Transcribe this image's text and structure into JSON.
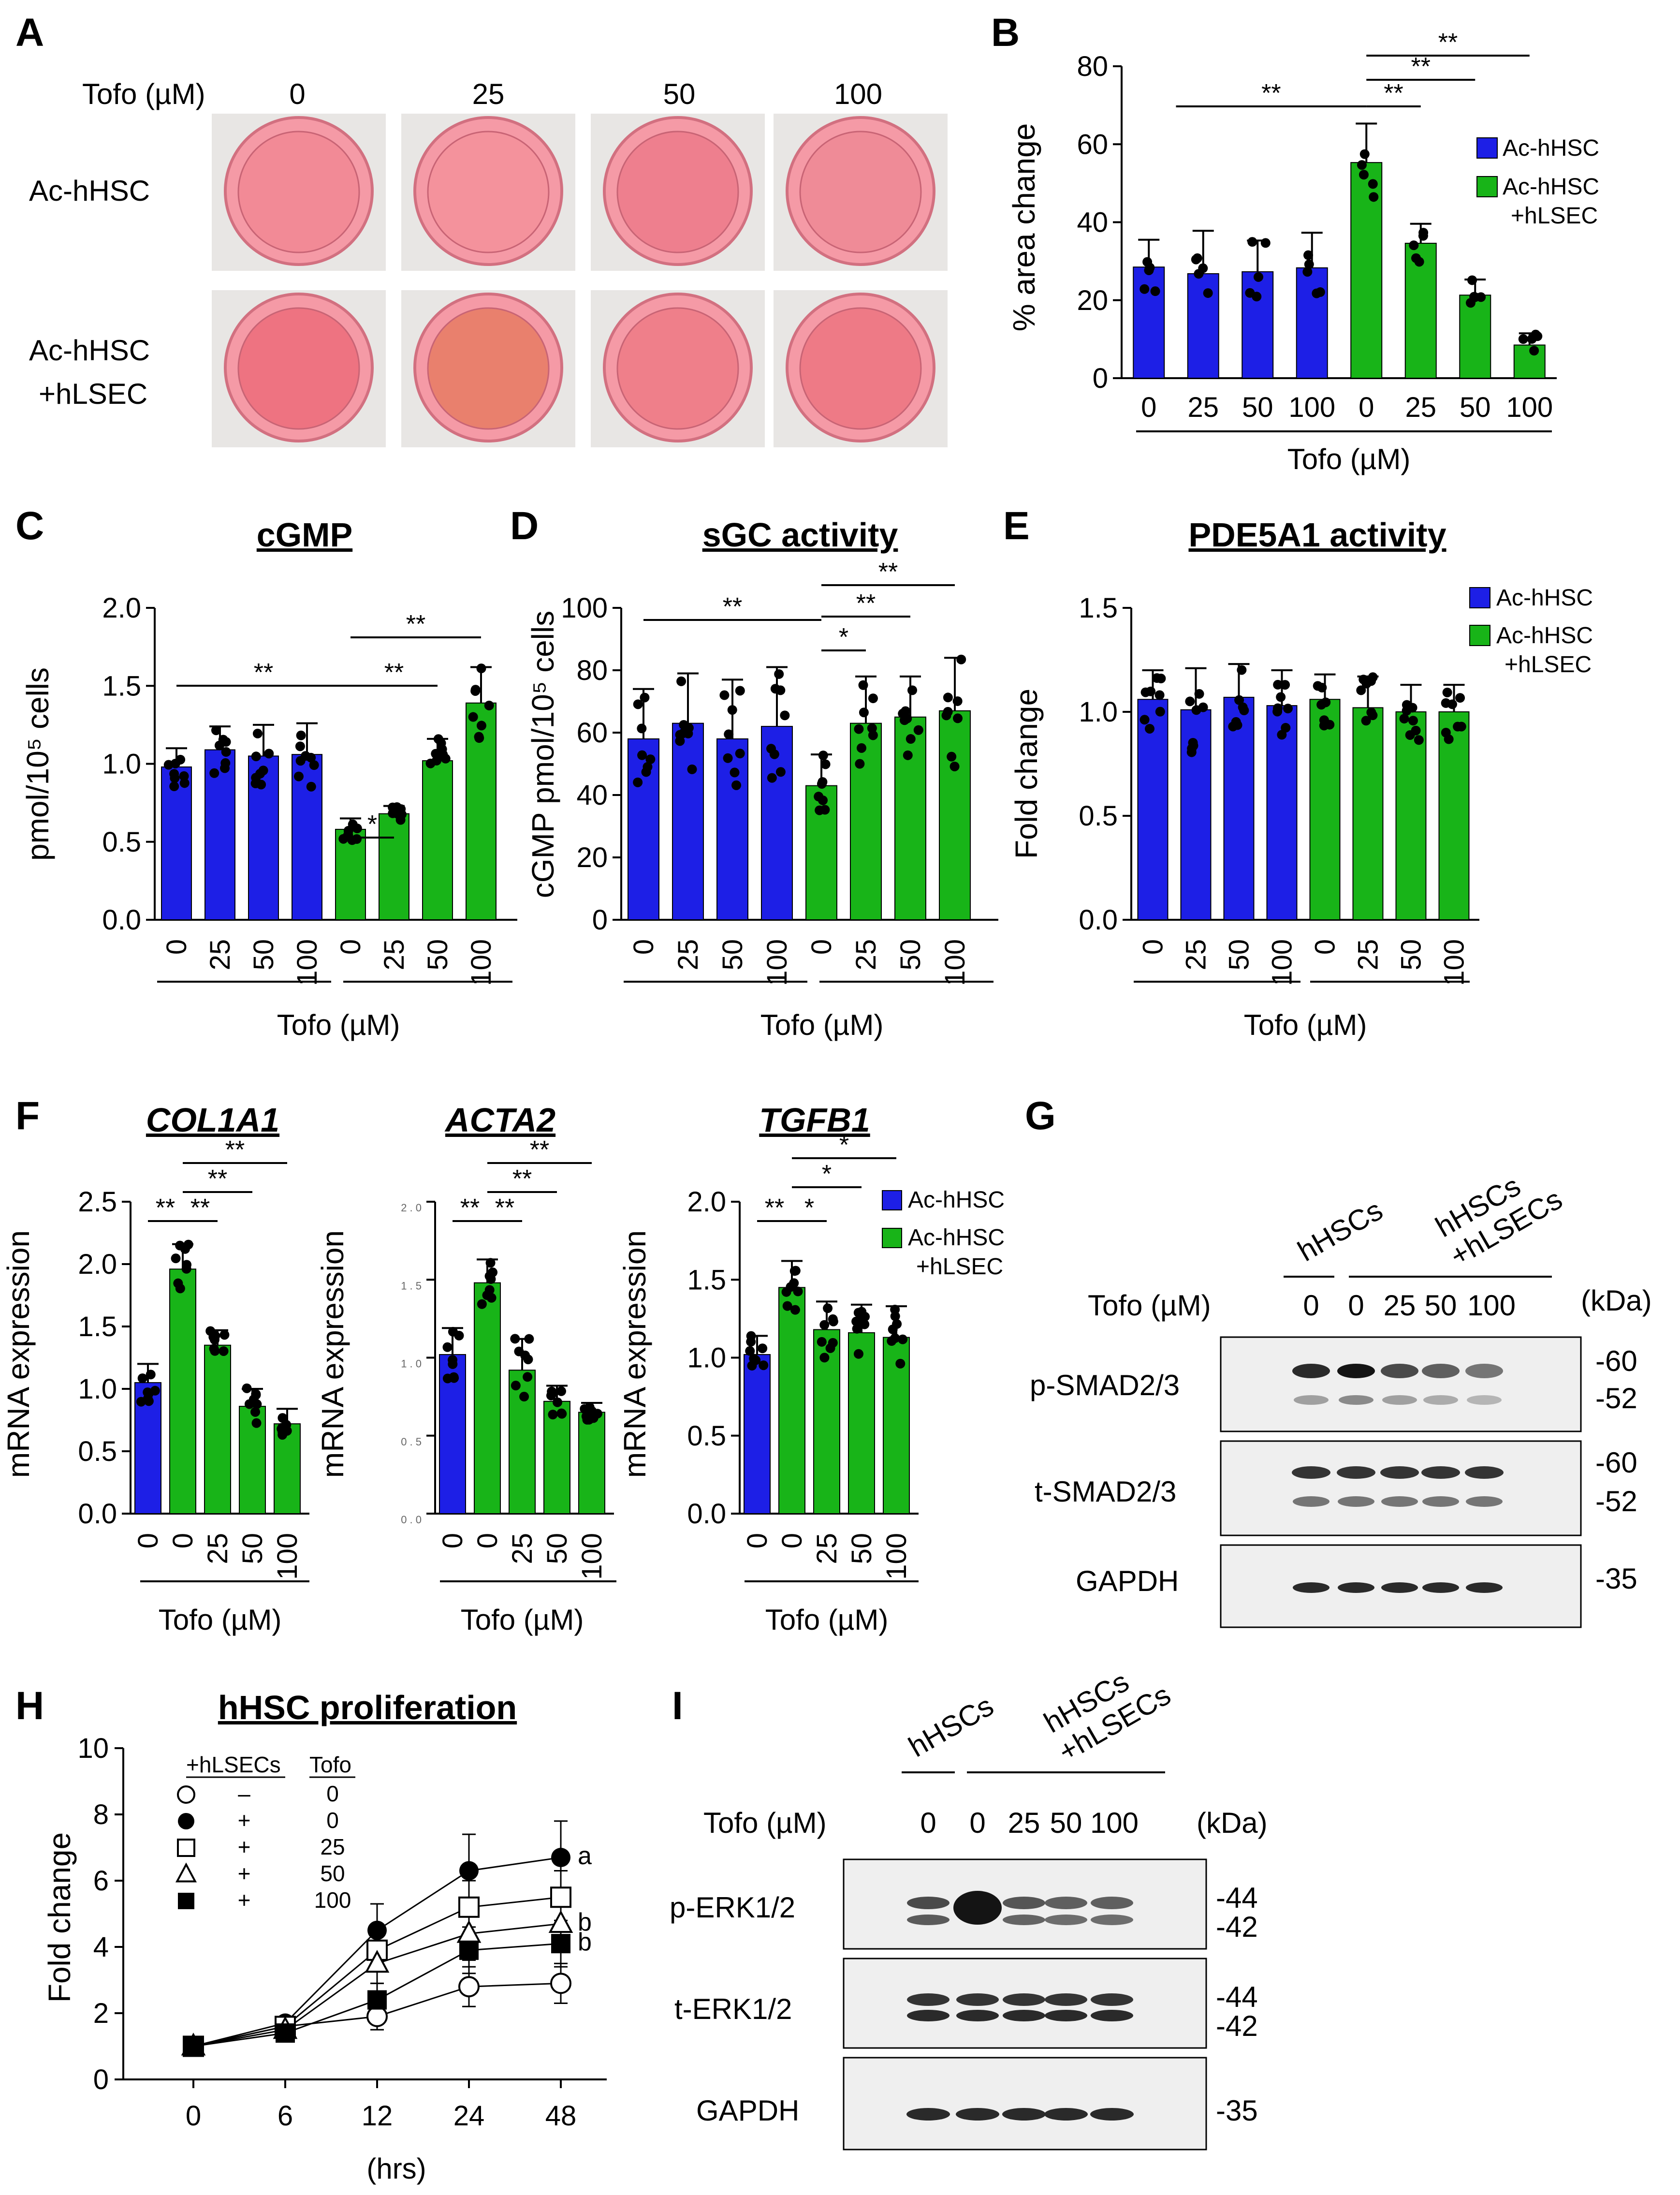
{
  "colors": {
    "blue": "#1d1fe6",
    "green": "#18b418",
    "black": "#000000",
    "well_pink": "#f08d9a"
  },
  "panel_letters": [
    "A",
    "B",
    "C",
    "D",
    "E",
    "F",
    "G",
    "H",
    "I"
  ],
  "panel_a": {
    "tofo_label": "Tofo (µM)",
    "concentrations": [
      "0",
      "25",
      "50",
      "100"
    ],
    "row_labels": [
      "Ac-hHSC",
      "Ac-hHSC\n+hLSEC"
    ],
    "row1": "Ac-hHSC",
    "row2a": "Ac-hHSC",
    "row2b": "+hLSEC"
  },
  "legend": {
    "blue_label": "Ac-hHSC",
    "green_label_1": "Ac-hHSC",
    "green_label_2": "+hLSEC"
  },
  "chart_data": [
    {
      "id": "B",
      "type": "bar",
      "title": "",
      "ylabel": "% area change",
      "xlabel": "Tofo (µM)",
      "ylim": [
        0,
        80
      ],
      "yticks": [
        "0",
        "20",
        "40",
        "60",
        "80"
      ],
      "categories": [
        "0",
        "25",
        "50",
        "100",
        "0",
        "25",
        "50",
        "100"
      ],
      "groups": [
        "Ac-hHSC",
        "Ac-hHSC+hLSEC"
      ],
      "values": [
        28.5,
        26.8,
        27.3,
        28.3,
        55.3,
        34.6,
        21.3,
        8.5
      ],
      "errors": [
        7,
        11,
        8,
        9,
        10,
        5,
        4,
        3
      ],
      "significance": [
        "**",
        "**",
        "**",
        "**"
      ]
    },
    {
      "id": "C",
      "type": "bar",
      "title": "cGMP",
      "ylabel": "pmol/10⁵ cells",
      "xlabel": "Tofo (µM)",
      "ylim": [
        0,
        2.0
      ],
      "yticks": [
        "0.0",
        "0.5",
        "1.0",
        "1.5",
        "2.0"
      ],
      "categories": [
        "0",
        "25",
        "50",
        "100",
        "0",
        "25",
        "50",
        "100"
      ],
      "values": [
        0.98,
        1.09,
        1.05,
        1.06,
        0.58,
        0.68,
        1.02,
        1.39
      ],
      "errors": [
        0.12,
        0.15,
        0.2,
        0.2,
        0.07,
        0.05,
        0.14,
        0.23
      ],
      "significance": [
        "**",
        "*",
        "**",
        "**"
      ]
    },
    {
      "id": "D",
      "type": "bar",
      "title": "sGC activity",
      "ylabel": "cGMP pmol/10⁵ cells",
      "xlabel": "Tofo (µM)",
      "ylim": [
        0,
        100
      ],
      "yticks": [
        "0",
        "20",
        "40",
        "60",
        "80",
        "100"
      ],
      "categories": [
        "0",
        "25",
        "50",
        "100",
        "0",
        "25",
        "50",
        "100"
      ],
      "values": [
        58,
        63,
        58,
        62,
        43,
        63,
        65,
        67
      ],
      "errors": [
        16,
        16,
        19,
        19,
        10,
        15,
        13,
        17
      ],
      "significance": [
        "**",
        "*",
        "**",
        "**"
      ]
    },
    {
      "id": "E",
      "type": "bar",
      "title": "PDE5A1 activity",
      "ylabel": "Fold change",
      "xlabel": "Tofo (µM)",
      "ylim": [
        0,
        1.5
      ],
      "yticks": [
        "0.0",
        "0.5",
        "1.0",
        "1.5"
      ],
      "categories": [
        "0",
        "25",
        "50",
        "100",
        "0",
        "25",
        "50",
        "100"
      ],
      "values": [
        1.06,
        1.01,
        1.07,
        1.03,
        1.06,
        1.02,
        1.0,
        1.0
      ],
      "errors": [
        0.14,
        0.2,
        0.16,
        0.17,
        0.12,
        0.15,
        0.13,
        0.13
      ]
    },
    {
      "id": "F1",
      "type": "bar",
      "title": "COL1A1",
      "ylabel": "mRNA expression",
      "xlabel": "Tofo (µM)",
      "ylim": [
        0,
        2.5
      ],
      "yticks": [
        "0.0",
        "0.5",
        "1.0",
        "1.5",
        "2.0",
        "2.5"
      ],
      "categories": [
        "0",
        "0",
        "25",
        "50",
        "100"
      ],
      "values": [
        1.05,
        1.96,
        1.35,
        0.86,
        0.72
      ],
      "errors": [
        0.15,
        0.2,
        0.12,
        0.14,
        0.12
      ],
      "significance": [
        "**",
        "**",
        "**",
        "**"
      ]
    },
    {
      "id": "F2",
      "type": "bar",
      "title": "ACTA2",
      "ylabel": "mRNA expression",
      "xlabel": "Tofo (µM)",
      "ylim": [
        0,
        2.0
      ],
      "yticks": [
        "0 . 0",
        "0 . 5",
        "1 . 0",
        "1 . 5",
        "2 . 0"
      ],
      "categories": [
        "0",
        "0",
        "25",
        "50",
        "100"
      ],
      "values": [
        1.02,
        1.48,
        0.92,
        0.72,
        0.65
      ],
      "errors": [
        0.17,
        0.15,
        0.2,
        0.1,
        0.06
      ],
      "significance": [
        "**",
        "**",
        "**",
        "**"
      ]
    },
    {
      "id": "F3",
      "type": "bar",
      "title": "TGFB1",
      "ylabel": "mRNA expression",
      "xlabel": "Tofo (µM)",
      "ylim": [
        0,
        2.0
      ],
      "yticks": [
        "0.0",
        "0.5",
        "1.0",
        "1.5",
        "2.0"
      ],
      "categories": [
        "0",
        "0",
        "25",
        "50",
        "100"
      ],
      "values": [
        1.02,
        1.45,
        1.18,
        1.16,
        1.13
      ],
      "errors": [
        0.12,
        0.17,
        0.18,
        0.18,
        0.2
      ],
      "significance": [
        "**",
        "*",
        "*",
        "*"
      ]
    },
    {
      "id": "H",
      "type": "line",
      "title": "hHSC proliferation",
      "ylabel": "Fold change",
      "xlabel": "(hrs)",
      "ylim": [
        0,
        10
      ],
      "yticks": [
        "0",
        "2",
        "4",
        "6",
        "8",
        "10"
      ],
      "x": [
        "0",
        "6",
        "12",
        "24",
        "48"
      ],
      "legend_header": [
        "+hLSECs",
        "Tofo"
      ],
      "series": [
        {
          "marker": "open-circle",
          "hlsec": "–",
          "tofo": "0",
          "values": [
            1.0,
            1.6,
            1.9,
            2.8,
            2.9
          ],
          "errors": [
            0.15,
            0.15,
            0.4,
            0.6,
            0.6
          ],
          "label": ""
        },
        {
          "marker": "filled-circle",
          "hlsec": "+",
          "tofo": "0",
          "values": [
            1.0,
            1.7,
            4.5,
            6.3,
            6.7
          ],
          "errors": [
            0.15,
            0.15,
            0.8,
            1.1,
            1.1
          ],
          "label": "a"
        },
        {
          "marker": "open-square",
          "hlsec": "+",
          "tofo": "25",
          "values": [
            1.0,
            1.6,
            3.9,
            5.2,
            5.5
          ],
          "errors": [
            0.15,
            0.15,
            0.6,
            0.8,
            0.8
          ],
          "label": ""
        },
        {
          "marker": "open-triangle",
          "hlsec": "+",
          "tofo": "50",
          "values": [
            1.0,
            1.5,
            3.5,
            4.4,
            4.7
          ],
          "errors": [
            0.15,
            0.15,
            0.6,
            0.8,
            0.8
          ],
          "label": "b"
        },
        {
          "marker": "filled-square",
          "hlsec": "+",
          "tofo": "100",
          "values": [
            1.0,
            1.4,
            2.4,
            3.9,
            4.1
          ],
          "errors": [
            0.15,
            0.15,
            0.5,
            0.7,
            0.7
          ],
          "label": "b"
        }
      ]
    }
  ],
  "panel_g": {
    "group1": "hHSCs",
    "group2a": "hHSCs",
    "group2b": "+hLSECs",
    "tofo_label": "Tofo (µM)",
    "lane_labels": [
      "0",
      "0",
      "25",
      "50",
      "100"
    ],
    "kda_label": "(kDa)",
    "blots": [
      {
        "name": "p-SMAD2/3",
        "markers": [
          "-60",
          "-52"
        ]
      },
      {
        "name": "t-SMAD2/3",
        "markers": [
          "-60",
          "-52"
        ]
      },
      {
        "name": "GAPDH",
        "markers": [
          "-35"
        ]
      }
    ],
    "p_smad_top_intensity": [
      0.9,
      1.0,
      0.75,
      0.65,
      0.55
    ],
    "p_smad_bottom_intensity": [
      0.35,
      0.45,
      0.35,
      0.3,
      0.25
    ]
  },
  "panel_i": {
    "group1": "hHSCs",
    "group2a": "hHSCs",
    "group2b": "+hLSECs",
    "tofo_label": "Tofo (µM)",
    "lane_labels": [
      "0",
      "0",
      "25",
      "50",
      "100"
    ],
    "kda_label": "(kDa)",
    "blots": [
      {
        "name": "p-ERK1/2",
        "markers": [
          "-44",
          "-42"
        ]
      },
      {
        "name": "t-ERK1/2",
        "markers": [
          "-44",
          "-42"
        ]
      },
      {
        "name": "GAPDH",
        "markers": [
          "-35"
        ]
      }
    ],
    "p_erk_intensity": [
      0.75,
      1.0,
      0.7,
      0.65,
      0.65
    ]
  }
}
